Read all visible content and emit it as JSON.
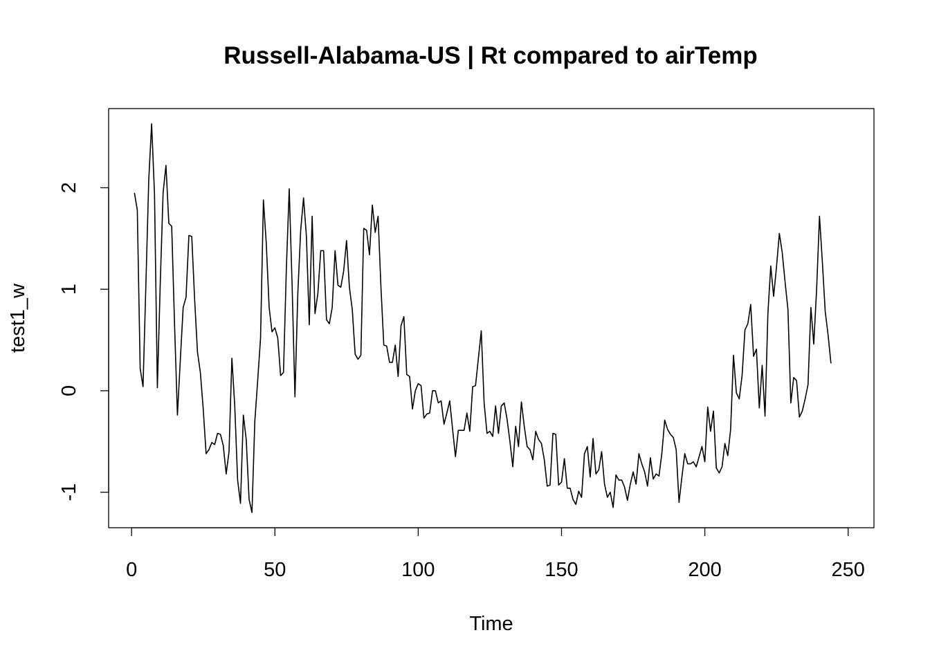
{
  "chart_data": {
    "type": "line",
    "title": "Russell-Alabama-US | Rt compared to airTemp",
    "xlabel": "Time",
    "ylabel": "test1_w",
    "xlim": [
      -8,
      259
    ],
    "ylim": [
      -1.35,
      2.78
    ],
    "x_ticks": [
      0,
      50,
      100,
      150,
      200,
      250
    ],
    "x_tick_labels": [
      "0",
      "50",
      "100",
      "150",
      "200",
      "250"
    ],
    "y_ticks": [
      -1,
      0,
      1,
      2
    ],
    "y_tick_labels": [
      "-1",
      "0",
      "1",
      "2"
    ],
    "grid": false,
    "legend": "none",
    "color": "#000000",
    "series": [
      {
        "values": [
          1.95,
          1.78,
          0.22,
          0.04,
          1.05,
          2.08,
          2.63,
          1.94,
          0.03,
          1.05,
          1.95,
          2.22,
          1.65,
          1.62,
          0.65,
          -0.24,
          0.3,
          0.82,
          0.92,
          1.53,
          1.52,
          0.9,
          0.38,
          0.18,
          -0.18,
          -0.62,
          -0.58,
          -0.51,
          -0.53,
          -0.42,
          -0.43,
          -0.54,
          -0.82,
          -0.6,
          0.32,
          -0.15,
          -0.88,
          -1.11,
          -0.24,
          -0.48,
          -1.07,
          -1.2,
          -0.3,
          0.1,
          0.52,
          1.88,
          1.45,
          0.82,
          0.58,
          0.62,
          0.52,
          0.15,
          0.18,
          1.2,
          1.99,
          1.05,
          -0.06,
          0.96,
          1.58,
          1.9,
          1.52,
          0.65,
          1.72,
          0.76,
          0.96,
          1.38,
          1.38,
          0.7,
          0.66,
          0.82,
          1.38,
          1.04,
          1.02,
          1.18,
          1.48,
          1.02,
          0.8,
          0.36,
          0.31,
          0.35,
          1.6,
          1.58,
          1.34,
          1.83,
          1.56,
          1.72,
          1.02,
          0.45,
          0.44,
          0.28,
          0.28,
          0.45,
          0.14,
          0.64,
          0.73,
          0.16,
          0.14,
          -0.18,
          0.0,
          0.07,
          0.05,
          -0.27,
          -0.23,
          -0.22,
          0.0,
          0.0,
          -0.12,
          -0.1,
          -0.33,
          -0.22,
          -0.1,
          -0.38,
          -0.65,
          -0.39,
          -0.39,
          -0.39,
          -0.22,
          -0.4,
          0.04,
          0.05,
          0.32,
          0.59,
          -0.12,
          -0.42,
          -0.4,
          -0.45,
          -0.15,
          -0.42,
          -0.15,
          -0.12,
          -0.28,
          -0.5,
          -0.75,
          -0.35,
          -0.55,
          -0.11,
          -0.35,
          -0.55,
          -0.58,
          -0.68,
          -0.4,
          -0.48,
          -0.52,
          -0.68,
          -0.94,
          -0.93,
          -0.42,
          -0.43,
          -0.93,
          -0.9,
          -0.67,
          -0.96,
          -0.96,
          -1.07,
          -1.12,
          -0.99,
          -1.05,
          -0.62,
          -0.55,
          -0.85,
          -0.47,
          -0.82,
          -0.78,
          -0.6,
          -0.92,
          -1.05,
          -1.0,
          -1.15,
          -0.83,
          -0.88,
          -0.88,
          -0.95,
          -1.08,
          -0.92,
          -0.8,
          -0.92,
          -0.62,
          -0.72,
          -0.8,
          -0.94,
          -0.66,
          -0.87,
          -0.82,
          -0.84,
          -0.62,
          -0.29,
          -0.38,
          -0.43,
          -0.46,
          -0.58,
          -1.1,
          -0.85,
          -0.62,
          -0.72,
          -0.72,
          -0.7,
          -0.75,
          -0.65,
          -0.55,
          -0.7,
          -0.16,
          -0.4,
          -0.2,
          -0.76,
          -0.81,
          -0.75,
          -0.52,
          -0.64,
          -0.38,
          0.35,
          -0.02,
          -0.08,
          0.15,
          0.6,
          0.66,
          0.85,
          0.34,
          0.41,
          -0.17,
          0.25,
          -0.25,
          0.76,
          1.23,
          0.93,
          1.22,
          1.55,
          1.36,
          1.07,
          0.8,
          -0.12,
          0.13,
          0.1,
          -0.26,
          -0.2,
          -0.08,
          0.06,
          0.82,
          0.46,
          1.0,
          1.72,
          1.27,
          0.78,
          0.55,
          0.27
        ]
      }
    ]
  }
}
